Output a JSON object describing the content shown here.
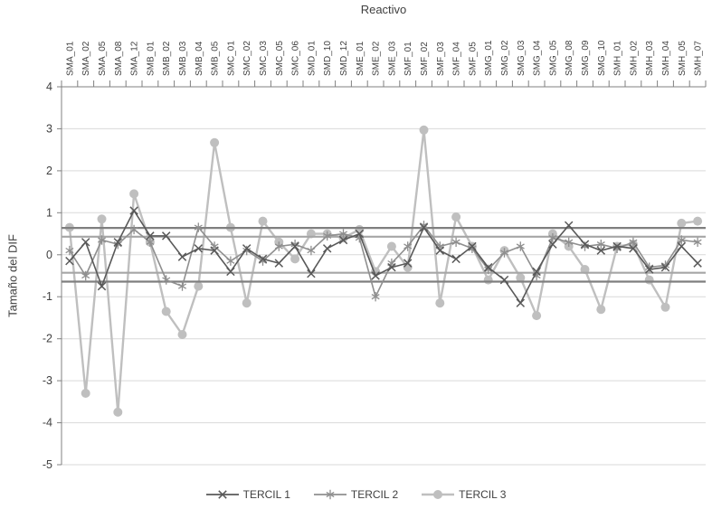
{
  "chart_data": {
    "type": "line",
    "title": "Reactivo",
    "title_position": "top",
    "xlabel": "Reactivo",
    "ylabel": "Tamaño del DIF",
    "x_labels_position": "top",
    "legend_position": "bottom",
    "grid": true,
    "ylim": [
      -5,
      4
    ],
    "yticks": [
      4,
      3,
      2,
      1,
      0,
      -1,
      -2,
      -3,
      -4,
      -5
    ],
    "categories": [
      "SMA_01",
      "SMA_02",
      "SMA_05",
      "SMA_08",
      "SMA_12",
      "SMB_01",
      "SMB_02",
      "SMB_03",
      "SMB_04",
      "SMB_05",
      "SMC_01",
      "SMC_02",
      "SMC_03",
      "SMC_05",
      "SMC_06",
      "SMD_01",
      "SMD_10",
      "SMD_12",
      "SME_01",
      "SME_02",
      "SME_03",
      "SMF_01",
      "SMF_02",
      "SMF_03",
      "SMF_04",
      "SMF_05",
      "SMG_01",
      "SMG_02",
      "SMG_03",
      "SMG_04",
      "SMG_05",
      "SMG_08",
      "SMG_09",
      "SMG_10",
      "SMH_01",
      "SMH_02",
      "SMH_03",
      "SMH_04",
      "SMH_05",
      "SMH_07"
    ],
    "series": [
      {
        "name": "TERCIL 1",
        "marker": "x",
        "color": "#595959",
        "values": [
          -0.15,
          0.3,
          -0.75,
          0.3,
          1.05,
          0.45,
          0.45,
          -0.05,
          0.15,
          0.1,
          -0.4,
          0.15,
          -0.1,
          -0.2,
          0.2,
          -0.45,
          0.15,
          0.35,
          0.5,
          -0.5,
          -0.3,
          -0.2,
          0.65,
          0.1,
          -0.1,
          0.2,
          -0.3,
          -0.6,
          -1.15,
          -0.4,
          0.25,
          0.7,
          0.25,
          0.1,
          0.2,
          0.15,
          -0.35,
          -0.3,
          0.2,
          -0.2
        ]
      },
      {
        "name": "TERCIL 2",
        "marker": "asterisk",
        "color": "#8f8f8f",
        "values": [
          0.1,
          -0.5,
          0.35,
          0.25,
          0.6,
          0.3,
          -0.6,
          -0.75,
          0.65,
          0.2,
          -0.15,
          0.1,
          -0.15,
          0.2,
          0.25,
          0.1,
          0.45,
          0.5,
          0.4,
          -1.0,
          -0.2,
          0.2,
          0.7,
          0.2,
          0.3,
          0.15,
          -0.35,
          0.05,
          0.2,
          -0.5,
          0.4,
          0.3,
          0.2,
          0.25,
          0.15,
          0.3,
          -0.3,
          -0.25,
          0.35,
          0.3
        ]
      },
      {
        "name": "TERCIL 3",
        "marker": "circle",
        "color": "#bfbfbf",
        "values": [
          0.65,
          -3.3,
          0.85,
          -3.75,
          1.45,
          0.3,
          -1.35,
          -1.9,
          -0.75,
          2.67,
          0.65,
          -1.15,
          0.8,
          0.3,
          -0.1,
          0.5,
          0.5,
          0.4,
          0.6,
          -0.4,
          0.2,
          -0.3,
          2.97,
          -1.15,
          0.9,
          0.2,
          -0.6,
          0.1,
          -0.55,
          -1.45,
          0.5,
          0.2,
          -0.35,
          -1.3,
          0.2,
          0.25,
          -0.6,
          -1.25,
          0.75,
          0.8
        ]
      }
    ],
    "reference_lines": [
      {
        "value": 0.64,
        "color": "#7f7f7f"
      },
      {
        "value": 0.43,
        "color": "#a6a6a6"
      },
      {
        "value": -0.43,
        "color": "#a6a6a6"
      },
      {
        "value": -0.64,
        "color": "#7f7f7f"
      }
    ],
    "colors": {
      "grid": "#d9d9d9",
      "axis": "#808080",
      "text": "#404040"
    }
  }
}
